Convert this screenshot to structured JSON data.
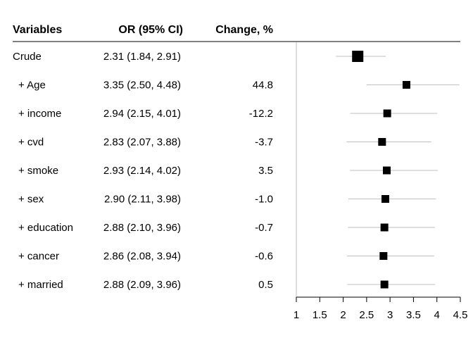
{
  "headers": {
    "variables": "Variables",
    "or_ci": "OR (95% CI)",
    "change": "Change, %"
  },
  "chart_data": {
    "type": "forest",
    "title": "",
    "xlabel": "",
    "xlim": [
      1,
      4.5
    ],
    "xticks": [
      1,
      1.5,
      2,
      2.5,
      3,
      3.5,
      4,
      4.5
    ],
    "xtick_labels": [
      "1",
      "1.5",
      "2",
      "2.5",
      "3",
      "3.5",
      "4",
      "4.5"
    ],
    "reference_line": 1,
    "rows": [
      {
        "variable": "Crude",
        "or_ci": "2.31 (1.84, 2.91)",
        "change": "",
        "or": 2.31,
        "lower": 1.84,
        "upper": 2.91
      },
      {
        "variable": "+ Age",
        "or_ci": "3.35 (2.50, 4.48)",
        "change": "44.8",
        "or": 3.35,
        "lower": 2.5,
        "upper": 4.48
      },
      {
        "variable": "+ income",
        "or_ci": "2.94 (2.15, 4.01)",
        "change": "-12.2",
        "or": 2.94,
        "lower": 2.15,
        "upper": 4.01
      },
      {
        "variable": "+ cvd",
        "or_ci": "2.83 (2.07, 3.88)",
        "change": "-3.7",
        "or": 2.83,
        "lower": 2.07,
        "upper": 3.88
      },
      {
        "variable": "+ smoke",
        "or_ci": "2.93 (2.14, 4.02)",
        "change": "3.5",
        "or": 2.93,
        "lower": 2.14,
        "upper": 4.02
      },
      {
        "variable": "+ sex",
        "or_ci": "2.90 (2.11, 3.98)",
        "change": "-1.0",
        "or": 2.9,
        "lower": 2.11,
        "upper": 3.98
      },
      {
        "variable": "+ education",
        "or_ci": "2.88 (2.10, 3.96)",
        "change": "-0.7",
        "or": 2.88,
        "lower": 2.1,
        "upper": 3.96
      },
      {
        "variable": "+ cancer",
        "or_ci": "2.86 (2.08, 3.94)",
        "change": "-0.6",
        "or": 2.86,
        "lower": 2.08,
        "upper": 3.94
      },
      {
        "variable": "+ married",
        "or_ci": "2.88 (2.09, 3.96)",
        "change": "0.5",
        "or": 2.88,
        "lower": 2.09,
        "upper": 3.96
      }
    ],
    "colors": {
      "point": "#000000",
      "ci_line": "#bfbfbf",
      "axis": "#000000",
      "reference": "#bfbfbf"
    }
  }
}
